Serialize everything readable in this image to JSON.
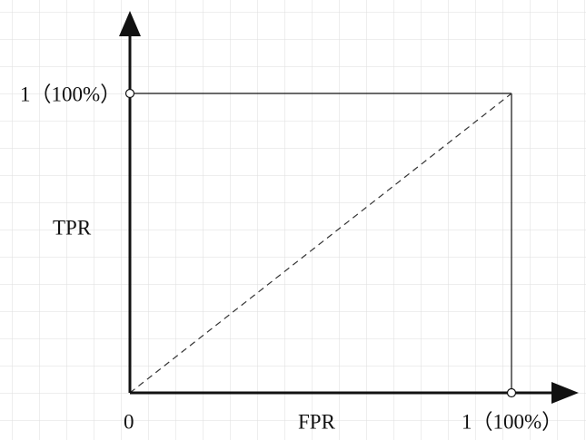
{
  "y_axis": {
    "label": "TPR",
    "max_label": "1（100%）"
  },
  "x_axis": {
    "label": "FPR",
    "max_label": "1（100%）"
  },
  "origin_label": "0"
}
